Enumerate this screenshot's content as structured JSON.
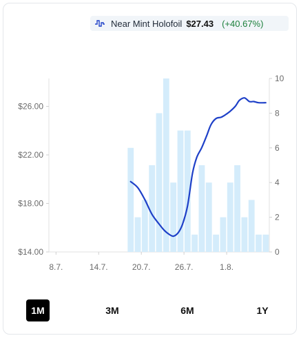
{
  "legend": {
    "icon": "price-line-icon",
    "series_name": "Near Mint Holofoil",
    "price": "$27.43",
    "change": "(+40.67%)",
    "change_color": "#1b7f3b"
  },
  "ranges": {
    "items": [
      {
        "label": "1M",
        "active": true
      },
      {
        "label": "3M",
        "active": false
      },
      {
        "label": "6M",
        "active": false
      },
      {
        "label": "1Y",
        "active": false
      }
    ]
  },
  "chart_data": {
    "type": "bar+line",
    "x_ticks": [
      "8.7.",
      "14.7.",
      "20.7.",
      "26.7.",
      "1.8."
    ],
    "x_range": [
      7,
      38
    ],
    "x_tick_positions": [
      8,
      14,
      20,
      26,
      32
    ],
    "y_left": {
      "ticks": [
        "$14.00",
        "$18.00",
        "$22.00",
        "$26.00"
      ],
      "tick_values": [
        14,
        18,
        22,
        26
      ],
      "range": [
        14,
        28.3
      ]
    },
    "y_right": {
      "ticks": [
        "0",
        "2",
        "4",
        "6",
        "8",
        "10"
      ],
      "tick_values": [
        0,
        2,
        4,
        6,
        8,
        10
      ],
      "range": [
        0,
        10
      ]
    },
    "series": [
      {
        "name": "Near Mint Holofoil",
        "kind": "line",
        "axis": "left",
        "color": "#1e40c8",
        "x": [
          18.5,
          19.5,
          20.5,
          21.5,
          22.5,
          23.2,
          23.8,
          24.5,
          25.2,
          25.8,
          26.5,
          27.2,
          27.8,
          28.5,
          29.2,
          29.8,
          30.5,
          31.2,
          31.8,
          32.5,
          33.2,
          33.8,
          34.5,
          35.2,
          35.8,
          36.5,
          37.5
        ],
        "y": [
          19.8,
          19.3,
          18.3,
          17.1,
          16.3,
          15.8,
          15.5,
          15.3,
          15.6,
          16.3,
          17.8,
          20.5,
          21.8,
          22.6,
          23.6,
          24.5,
          25.0,
          25.1,
          25.3,
          25.6,
          26.0,
          26.5,
          26.7,
          26.4,
          26.4,
          26.3,
          26.3
        ]
      },
      {
        "name": "Volume",
        "kind": "bar",
        "axis": "right",
        "color": "#d4ecfb",
        "x": [
          19,
          20,
          21,
          22,
          23,
          24,
          25,
          26,
          27,
          28,
          29,
          30,
          31,
          32,
          33,
          34,
          35,
          36,
          37,
          38
        ],
        "values": [
          6,
          2,
          3,
          5,
          8,
          10,
          4,
          7,
          7,
          1,
          5,
          4,
          1,
          2,
          4,
          5,
          2,
          3,
          1,
          1
        ]
      }
    ]
  }
}
